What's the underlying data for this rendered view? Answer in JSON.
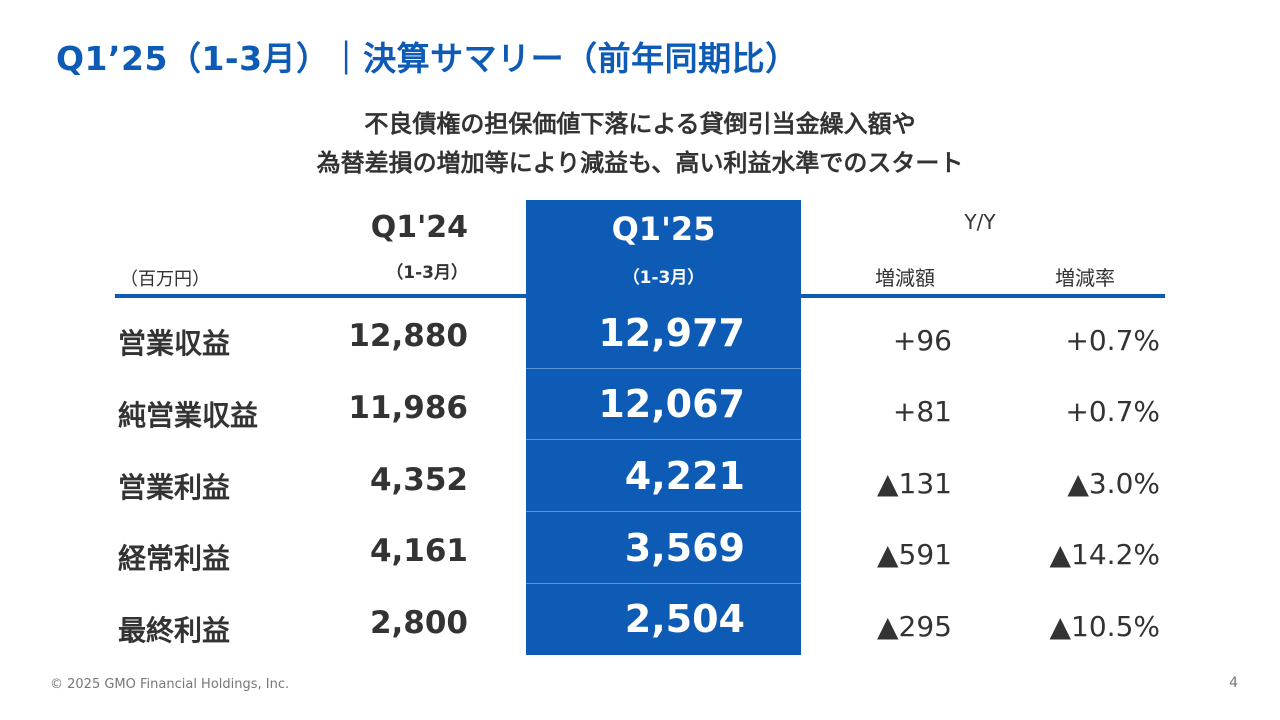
{
  "title": "Q1’25（1-3月）｜決算サマリー（前年同期比）",
  "subtitle_lines": [
    "不良債権の担保価値下落による貸倒引当金繰入額や",
    "為替差損の増加等により減益も、高い利益水準でのスタート"
  ],
  "table": {
    "unit": "（百万円）",
    "prev_period": "Q1'24",
    "prev_period_sub": "（1-3月）",
    "curr_period": "Q1'25",
    "curr_period_sub": "（1-3月）",
    "yy_label": "Y/Y",
    "diff_label": "増減額",
    "rate_label": "増減率",
    "rows": [
      {
        "label": "営業収益",
        "q124": "12,880",
        "q125": "12,977",
        "diff": "+96",
        "rate": "+0.7%"
      },
      {
        "label": "純営業収益",
        "q124": "11,986",
        "q125": "12,067",
        "diff": "+81",
        "rate": "+0.7%"
      },
      {
        "label": "営業利益",
        "q124": "4,352",
        "q125": "4,221",
        "diff": "▲131",
        "rate": "▲3.0%"
      },
      {
        "label": "経常利益",
        "q124": "4,161",
        "q125": "3,569",
        "diff": "▲591",
        "rate": "▲14.2%"
      },
      {
        "label": "最終利益",
        "q124": "2,800",
        "q125": "2,504",
        "diff": "▲295",
        "rate": "▲10.5%"
      }
    ]
  },
  "footer": {
    "copyright": "© 2025 GMO Financial Holdings, Inc.",
    "page_number": "4"
  },
  "colors": {
    "accent": "#0d5bb5",
    "text": "#333333"
  }
}
